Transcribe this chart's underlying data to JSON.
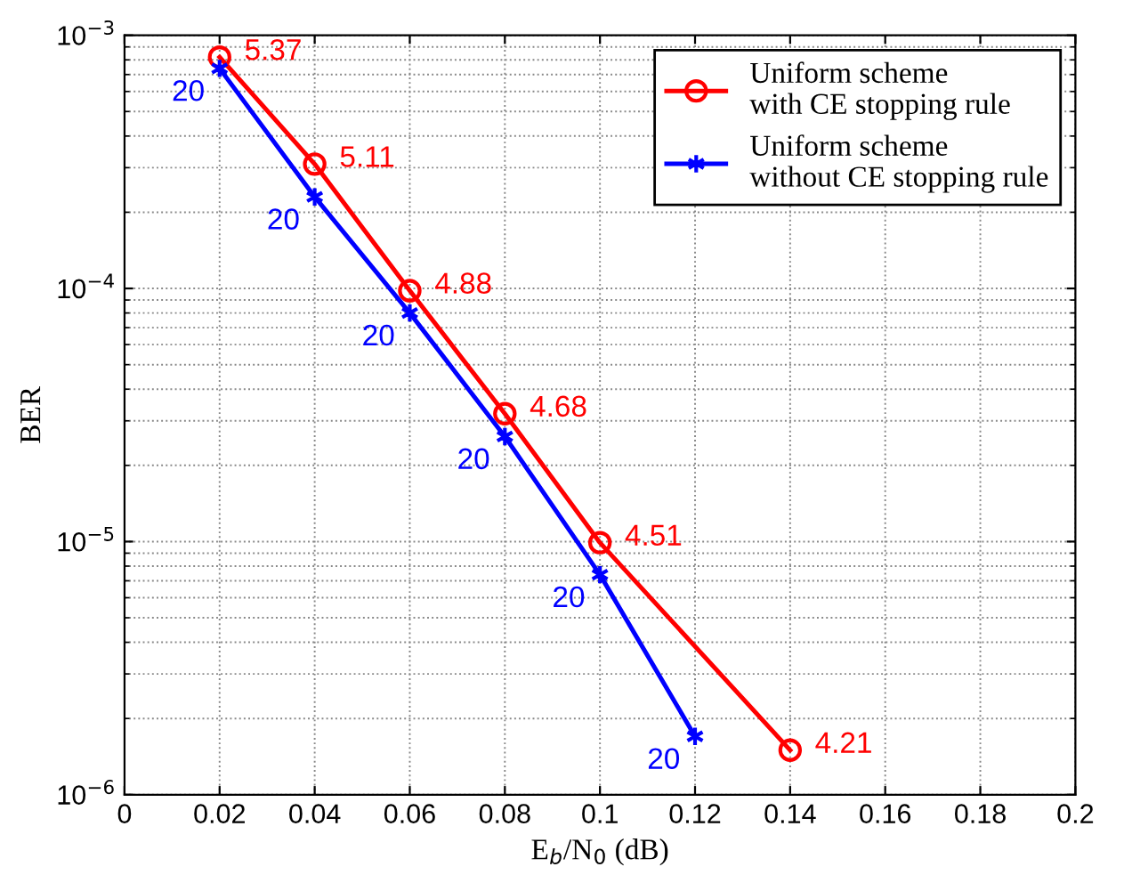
{
  "chart_data": {
    "type": "line",
    "xlabel": "E$_{b}$/N$_{0}$ (dB)",
    "ylabel": "BER",
    "log": "y",
    "grid": true,
    "legend": "top right",
    "xlim": [
      0,
      0.2
    ],
    "xticks": [
      0,
      0.02,
      0.04,
      0.06,
      0.08,
      0.1,
      0.12,
      0.14,
      0.16,
      0.18,
      0.2
    ],
    "ylim": [
      1e-06,
      0.001
    ],
    "yticks": [
      {
        "value": 1e-06,
        "label": "10$^{−6}$"
      },
      {
        "value": 1e-05,
        "label": "10$^{−5}$"
      },
      {
        "value": 0.0001,
        "label": "10$^{−4}$"
      },
      {
        "value": 0.001,
        "label": "10$^{−3}$"
      }
    ],
    "series": [
      {
        "name": "Uniform scheme\nwith CE stopping rule",
        "color": "#ff0000",
        "marker": "circle",
        "x": [
          0.02,
          0.04,
          0.06,
          0.08,
          0.1,
          0.14
        ],
        "values": [
          0.00082,
          0.00031,
          9.8e-05,
          3.2e-05,
          9.9e-06,
          1.5e-06
        ]
      },
      {
        "name": "Uniform scheme\nwithout CE stopping rule",
        "color": "#0000ff",
        "marker": "cross",
        "x": [
          0.02,
          0.04,
          0.06,
          0.08,
          0.1,
          0.12
        ],
        "values": [
          0.00074,
          0.00023,
          8e-05,
          2.6e-05,
          7.4e-06,
          1.7e-06
        ]
      }
    ],
    "annotations": [
      {
        "text": "5.37",
        "x": 0.02,
        "y": 0.00082
      },
      {
        "text": "5.11",
        "x": 0.04,
        "y": 0.00031
      },
      {
        "text": "4.88",
        "x": 0.06,
        "y": 9.8e-05
      },
      {
        "text": "4.68",
        "x": 0.08,
        "y": 3.2e-05
      },
      {
        "text": "4.51",
        "x": 0.1,
        "y": 9.9e-06
      },
      {
        "text": "4.21",
        "x": 0.14,
        "y": 1.5e-06
      },
      {
        "text": "20",
        "x": 0.02,
        "y": 0.00074
      },
      {
        "text": "20",
        "x": 0.04,
        "y": 0.00023
      },
      {
        "text": "20",
        "x": 0.06,
        "y": 8e-05
      },
      {
        "text": "20",
        "x": 0.08,
        "y": 2.6e-05
      },
      {
        "text": "20",
        "x": 0.1,
        "y": 7.4e-06
      },
      {
        "text": "20",
        "x": 0.12,
        "y": 1.7e-06
      }
    ]
  }
}
